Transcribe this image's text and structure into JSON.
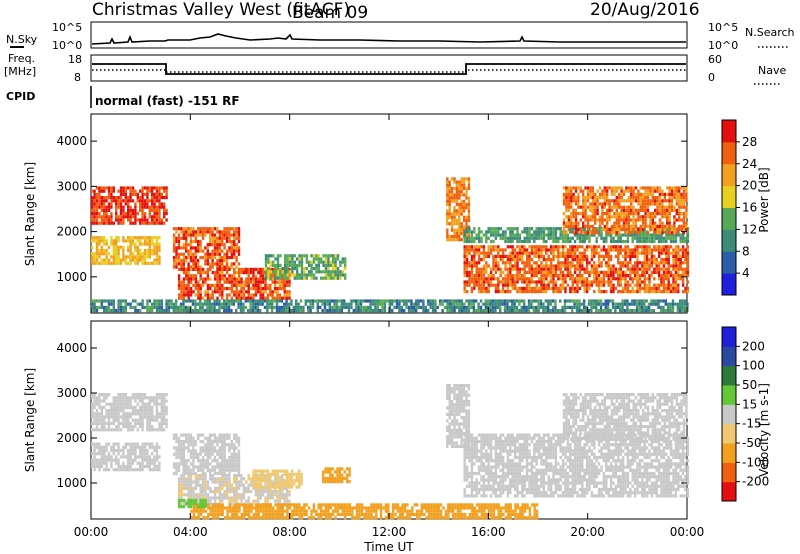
{
  "header": {
    "title": "Christmas Valley West (fitACF)",
    "beam": "Beam 09",
    "date": "20/Aug/2016"
  },
  "top_panels": {
    "nsky_label": "N.Sky",
    "nsky_ticks": [
      "10^5",
      "10^0"
    ],
    "nsearch_label": "N.Search",
    "nsearch_ticks": [
      "10^5",
      "10^0"
    ],
    "freq_label": "Freq.",
    "freq_unit": "[MHz]",
    "freq_ticks": [
      "18",
      "8"
    ],
    "nave_label": "Nave",
    "nave_ticks": [
      "60",
      "0"
    ],
    "cpid_label": "CPID",
    "cpid_text": "normal (fast) -151 RF"
  },
  "chart_data": [
    {
      "type": "heatmap",
      "panel": "power",
      "ylabel": "Slant Range [km]",
      "xlabel": "",
      "y_ticks": [
        1000,
        2000,
        3000,
        4000
      ],
      "ylim": [
        200,
        4600
      ],
      "xlim_hours": [
        0,
        24
      ],
      "colorbar_label": "Power [dB]",
      "colorbar_ticks": [
        "4",
        "8",
        "12",
        "16",
        "20",
        "24",
        "28"
      ],
      "colorbar_colors": [
        "#1f1fe0",
        "#2a5fa8",
        "#3c8a78",
        "#57a957",
        "#e6d020",
        "#f2a020",
        "#f06010",
        "#e41010"
      ],
      "regions": [
        {
          "t0": 0.0,
          "t1": 3.0,
          "r0": 2200,
          "r1": 3000,
          "level": 28
        },
        {
          "t0": 0.0,
          "t1": 2.8,
          "r0": 1300,
          "r1": 1900,
          "level": 20
        },
        {
          "t0": 3.3,
          "t1": 6.0,
          "r0": 1200,
          "r1": 2100,
          "level": 26
        },
        {
          "t0": 3.5,
          "t1": 8.0,
          "r0": 500,
          "r1": 1200,
          "level": 27
        },
        {
          "t0": 7.0,
          "t1": 10.2,
          "r0": 1000,
          "r1": 1500,
          "level": 14
        },
        {
          "t0": 0.0,
          "t1": 24.0,
          "r0": 250,
          "r1": 500,
          "level": 10
        },
        {
          "t0": 14.3,
          "t1": 15.2,
          "r0": 1800,
          "r1": 3200,
          "level": 24
        },
        {
          "t0": 15.0,
          "t1": 24.0,
          "r0": 700,
          "r1": 1700,
          "level": 26
        },
        {
          "t0": 15.0,
          "t1": 24.0,
          "r0": 1800,
          "r1": 2100,
          "level": 12
        },
        {
          "t0": 19.0,
          "t1": 24.0,
          "r0": 2000,
          "r1": 3000,
          "level": 25
        }
      ]
    },
    {
      "type": "heatmap",
      "panel": "velocity",
      "ylabel": "Slant Range [km]",
      "xlabel": "Time UT",
      "y_ticks": [
        1000,
        2000,
        3000,
        4000
      ],
      "ylim": [
        200,
        4600
      ],
      "xlim_hours": [
        0,
        24
      ],
      "x_ticks": [
        "00:00",
        "04:00",
        "08:00",
        "12:00",
        "16:00",
        "20:00",
        "00:00"
      ],
      "colorbar_label": "Velocity [m s-1]",
      "colorbar_ticks": [
        "-200",
        "-100",
        "-50",
        "-15",
        "15",
        "50",
        "100",
        "200"
      ],
      "colorbar_colors": [
        "#e41010",
        "#f06010",
        "#f2a020",
        "#f0c870",
        "#c8c8c8",
        "#62c83a",
        "#2e7a3a",
        "#2a4aa0",
        "#1f1fd8"
      ],
      "regions": [
        {
          "t0": 0.0,
          "t1": 3.0,
          "r0": 2200,
          "r1": 3000,
          "level": 0
        },
        {
          "t0": 0.0,
          "t1": 2.8,
          "r0": 1300,
          "r1": 1900,
          "level": 0
        },
        {
          "t0": 3.3,
          "t1": 6.0,
          "r0": 1200,
          "r1": 2100,
          "level": 0
        },
        {
          "t0": 3.5,
          "t1": 8.0,
          "r0": 500,
          "r1": 1200,
          "level": -10
        },
        {
          "t0": 6.5,
          "t1": 8.5,
          "r0": 900,
          "r1": 1300,
          "level": -40
        },
        {
          "t0": 9.3,
          "t1": 10.4,
          "r0": 1000,
          "r1": 1350,
          "level": -80
        },
        {
          "t0": 4.0,
          "t1": 18.0,
          "r0": 250,
          "r1": 550,
          "level": -60
        },
        {
          "t0": 3.5,
          "t1": 4.6,
          "r0": 450,
          "r1": 650,
          "level": 40
        },
        {
          "t0": 14.3,
          "t1": 15.2,
          "r0": 1800,
          "r1": 3200,
          "level": 0
        },
        {
          "t0": 15.0,
          "t1": 24.0,
          "r0": 700,
          "r1": 2100,
          "level": 0
        },
        {
          "t0": 19.0,
          "t1": 24.0,
          "r0": 2000,
          "r1": 3000,
          "level": 0
        }
      ]
    }
  ]
}
